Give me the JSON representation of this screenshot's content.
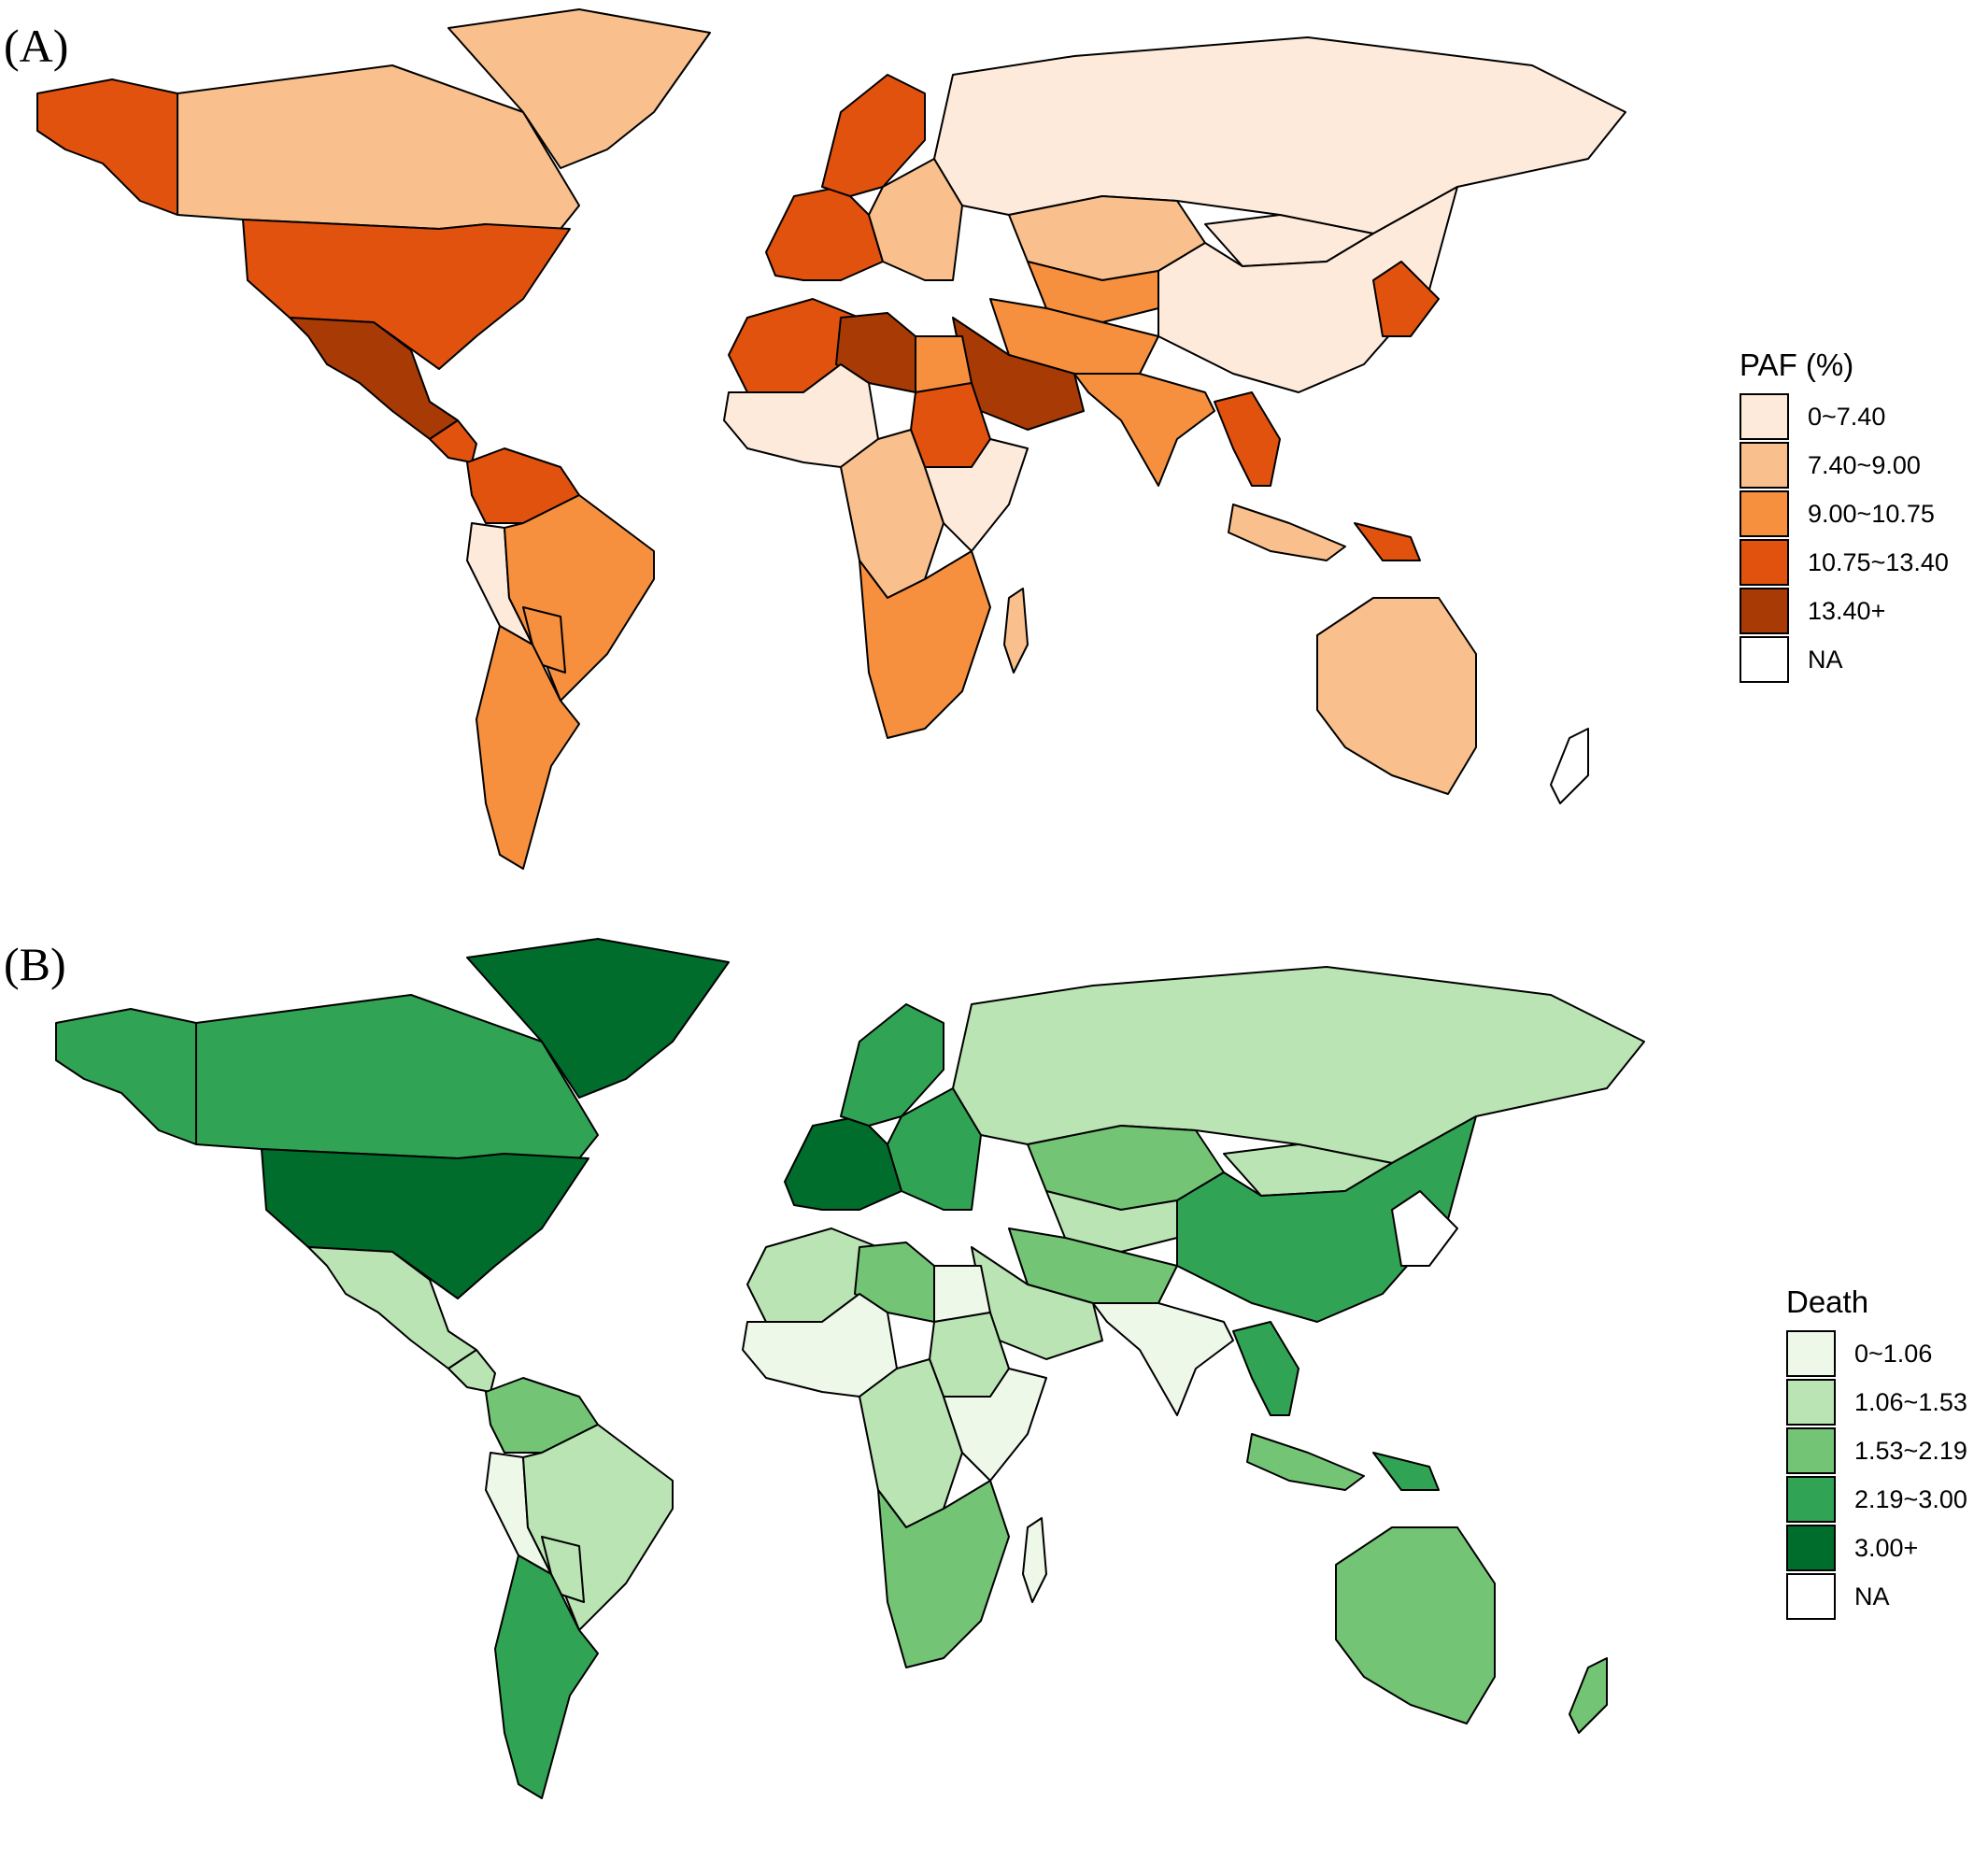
{
  "panels": [
    {
      "label": "(A)",
      "legend": {
        "title": "PAF (%)",
        "items": [
          {
            "label": "0~7.40",
            "color": "#fdeadb"
          },
          {
            "label": "7.40~9.00",
            "color": "#f9bf8c"
          },
          {
            "label": "9.00~10.75",
            "color": "#f7903e"
          },
          {
            "label": "10.75~13.40",
            "color": "#e1520f"
          },
          {
            "label": "13.40+",
            "color": "#a83a06"
          },
          {
            "label": "NA",
            "color": "#ffffff"
          }
        ]
      },
      "regions": [
        {
          "name": "Alaska",
          "bin": 3
        },
        {
          "name": "Canada",
          "bin": 1
        },
        {
          "name": "Greenland",
          "bin": 1
        },
        {
          "name": "United States",
          "bin": 3
        },
        {
          "name": "Mexico",
          "bin": 4
        },
        {
          "name": "Central America",
          "bin": 3
        },
        {
          "name": "Colombia-Venezuela",
          "bin": 3
        },
        {
          "name": "Peru-Ecuador",
          "bin": 0
        },
        {
          "name": "Brazil",
          "bin": 2
        },
        {
          "name": "Bolivia",
          "bin": 2
        },
        {
          "name": "Argentina-Chile",
          "bin": 2
        },
        {
          "name": "Western Europe",
          "bin": 3
        },
        {
          "name": "Scandinavia",
          "bin": 3
        },
        {
          "name": "Eastern Europe",
          "bin": 1
        },
        {
          "name": "Russia",
          "bin": 0
        },
        {
          "name": "Kazakhstan",
          "bin": 1
        },
        {
          "name": "Central Asia",
          "bin": 2
        },
        {
          "name": "Mongolia",
          "bin": 0
        },
        {
          "name": "China",
          "bin": 0
        },
        {
          "name": "Iran-Afghanistan",
          "bin": 2
        },
        {
          "name": "India",
          "bin": 2
        },
        {
          "name": "Arabian Peninsula",
          "bin": 4
        },
        {
          "name": "Northwest Africa",
          "bin": 3
        },
        {
          "name": "Libya",
          "bin": 4
        },
        {
          "name": "Egypt",
          "bin": 2
        },
        {
          "name": "Sudan",
          "bin": 3
        },
        {
          "name": "West Africa",
          "bin": 0
        },
        {
          "name": "Central Africa",
          "bin": 1
        },
        {
          "name": "East Africa",
          "bin": 0
        },
        {
          "name": "Southern Africa",
          "bin": 2
        },
        {
          "name": "Madagascar",
          "bin": 1
        },
        {
          "name": "Southeast Asia",
          "bin": 3
        },
        {
          "name": "Indonesia",
          "bin": 1
        },
        {
          "name": "Papua New Guinea",
          "bin": 3
        },
        {
          "name": "Japan-Korea",
          "bin": 3
        },
        {
          "name": "Australia",
          "bin": 1
        },
        {
          "name": "New Zealand",
          "bin": 5
        }
      ]
    },
    {
      "label": "(B)",
      "legend": {
        "title": "Death",
        "items": [
          {
            "label": "0~1.06",
            "color": "#edf8e9"
          },
          {
            "label": "1.06~1.53",
            "color": "#bae4b3"
          },
          {
            "label": "1.53~2.19",
            "color": "#74c476"
          },
          {
            "label": "2.19~3.00",
            "color": "#31a354"
          },
          {
            "label": "3.00+",
            "color": "#006d2c"
          },
          {
            "label": "NA",
            "color": "#ffffff"
          }
        ]
      },
      "regions": [
        {
          "name": "Alaska",
          "bin": 3
        },
        {
          "name": "Canada",
          "bin": 3
        },
        {
          "name": "Greenland",
          "bin": 4
        },
        {
          "name": "United States",
          "bin": 4
        },
        {
          "name": "Mexico",
          "bin": 1
        },
        {
          "name": "Central America",
          "bin": 1
        },
        {
          "name": "Colombia-Venezuela",
          "bin": 2
        },
        {
          "name": "Peru-Ecuador",
          "bin": 0
        },
        {
          "name": "Brazil",
          "bin": 1
        },
        {
          "name": "Bolivia",
          "bin": 1
        },
        {
          "name": "Argentina-Chile",
          "bin": 3
        },
        {
          "name": "Western Europe",
          "bin": 4
        },
        {
          "name": "Scandinavia",
          "bin": 3
        },
        {
          "name": "Eastern Europe",
          "bin": 3
        },
        {
          "name": "Russia",
          "bin": 1
        },
        {
          "name": "Kazakhstan",
          "bin": 2
        },
        {
          "name": "Central Asia",
          "bin": 1
        },
        {
          "name": "Mongolia",
          "bin": 1
        },
        {
          "name": "China",
          "bin": 3
        },
        {
          "name": "Iran-Afghanistan",
          "bin": 2
        },
        {
          "name": "India",
          "bin": 0
        },
        {
          "name": "Arabian Peninsula",
          "bin": 1
        },
        {
          "name": "Northwest Africa",
          "bin": 1
        },
        {
          "name": "Libya",
          "bin": 2
        },
        {
          "name": "Egypt",
          "bin": 0
        },
        {
          "name": "Sudan",
          "bin": 1
        },
        {
          "name": "West Africa",
          "bin": 0
        },
        {
          "name": "Central Africa",
          "bin": 1
        },
        {
          "name": "East Africa",
          "bin": 0
        },
        {
          "name": "Southern Africa",
          "bin": 2
        },
        {
          "name": "Madagascar",
          "bin": 0
        },
        {
          "name": "Southeast Asia",
          "bin": 3
        },
        {
          "name": "Indonesia",
          "bin": 2
        },
        {
          "name": "Papua New Guinea",
          "bin": 3
        },
        {
          "name": "Japan-Korea",
          "bin": 5
        },
        {
          "name": "Australia",
          "bin": 2
        },
        {
          "name": "New Zealand",
          "bin": 2
        }
      ]
    }
  ]
}
